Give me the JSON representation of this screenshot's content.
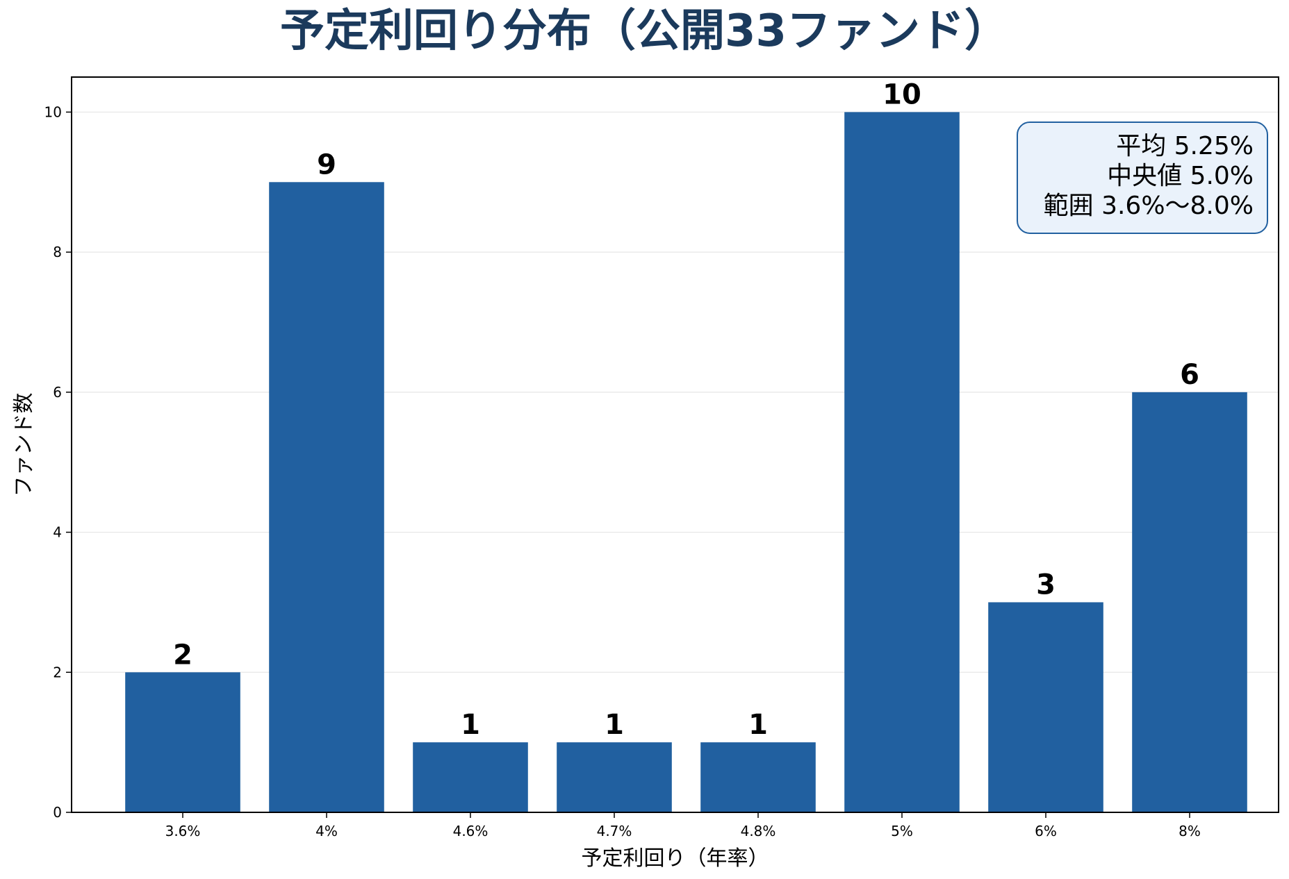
{
  "chart_data": {
    "type": "bar",
    "title": "予定利回り分布（公開33ファンド）",
    "xlabel": "予定利回り（年率）",
    "ylabel": "ファンド数",
    "categories": [
      "3.6%",
      "4%",
      "4.6%",
      "4.7%",
      "4.8%",
      "5%",
      "6%",
      "8%"
    ],
    "values": [
      2,
      9,
      1,
      1,
      1,
      10,
      3,
      6
    ],
    "ylim": [
      0,
      10.5
    ],
    "yticks": [
      0,
      2,
      4,
      6,
      8,
      10
    ],
    "grid": true,
    "bar_color": "#2160a0",
    "title_color": "#1b3a5c",
    "stats_box": {
      "lines": [
        "平均 5.25%",
        "中央値 5.0%",
        "範囲 3.6%〜8.0%"
      ],
      "placement": "top-right",
      "background": "#eaf2fb",
      "border_color": "#2160a0"
    }
  }
}
